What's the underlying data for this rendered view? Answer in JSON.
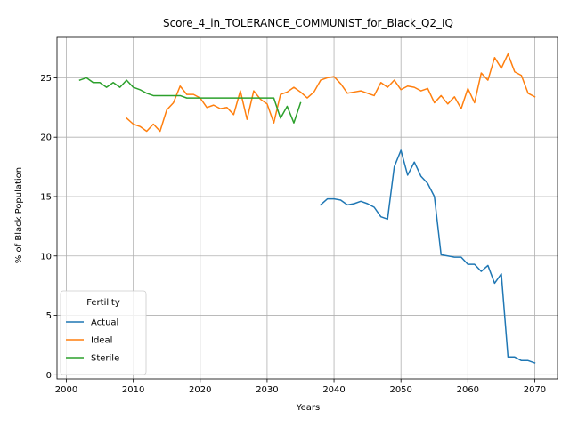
{
  "chart_data": {
    "type": "line",
    "title": "Score_4_in_TOLERANCE_COMMUNIST_for_Black_Q2_IQ",
    "xlabel": "Years",
    "ylabel": "% of Black Population",
    "xlim": [
      1998.6,
      2073.4
    ],
    "ylim": [
      -0.35,
      28.4
    ],
    "xticks": [
      2000,
      2010,
      2020,
      2030,
      2040,
      2050,
      2060,
      2070
    ],
    "yticks": [
      0,
      5,
      10,
      15,
      20,
      25
    ],
    "grid": true,
    "legend": {
      "title": "Fertility",
      "placement": "lower-left"
    },
    "series": [
      {
        "name": "Actual",
        "color": "#1f77b4",
        "x": [
          2038,
          2039,
          2040,
          2041,
          2042,
          2043,
          2044,
          2045,
          2046,
          2047,
          2048,
          2049,
          2050,
          2051,
          2052,
          2053,
          2054,
          2055,
          2056,
          2057,
          2058,
          2059,
          2060,
          2061,
          2062,
          2063,
          2064,
          2065,
          2066,
          2067,
          2068,
          2069,
          2070
        ],
        "y": [
          14.3,
          14.8,
          14.8,
          14.7,
          14.3,
          14.4,
          14.6,
          14.4,
          14.1,
          13.3,
          13.1,
          17.5,
          18.9,
          16.8,
          17.9,
          16.7,
          16.1,
          15.0,
          10.1,
          10.0,
          9.9,
          9.9,
          9.3,
          9.3,
          8.7,
          9.2,
          7.7,
          8.5,
          1.5,
          1.5,
          1.2,
          1.2,
          1.0
        ]
      },
      {
        "name": "Ideal",
        "color": "#ff7f0e",
        "x": [
          2009,
          2010,
          2011,
          2012,
          2013,
          2014,
          2015,
          2016,
          2017,
          2018,
          2019,
          2020,
          2021,
          2022,
          2023,
          2024,
          2025,
          2026,
          2027,
          2028,
          2029,
          2030,
          2031,
          2032,
          2033,
          2034,
          2035,
          2036,
          2037,
          2038,
          2039,
          2040,
          2041,
          2042,
          2043,
          2044,
          2045,
          2046,
          2047,
          2048,
          2049,
          2050,
          2051,
          2052,
          2053,
          2054,
          2055,
          2056,
          2057,
          2058,
          2059,
          2060,
          2061,
          2062,
          2063,
          2064,
          2065,
          2066,
          2067,
          2068,
          2069,
          2070
        ],
        "y": [
          21.6,
          21.1,
          20.9,
          20.5,
          21.1,
          20.5,
          22.3,
          22.9,
          24.3,
          23.6,
          23.6,
          23.3,
          22.5,
          22.7,
          22.4,
          22.5,
          21.9,
          23.9,
          21.5,
          23.9,
          23.2,
          22.8,
          21.2,
          23.6,
          23.8,
          24.2,
          23.8,
          23.3,
          23.8,
          24.8,
          25.0,
          25.1,
          24.5,
          23.7,
          23.8,
          23.9,
          23.7,
          23.5,
          24.6,
          24.2,
          24.8,
          24.0,
          24.3,
          24.2,
          23.9,
          24.1,
          22.9,
          23.5,
          22.8,
          23.4,
          22.4,
          24.1,
          22.9,
          25.4,
          24.8,
          26.7,
          25.8,
          27.0,
          25.5,
          25.2,
          23.7,
          23.4
        ]
      },
      {
        "name": "Sterile",
        "color": "#2ca02c",
        "x": [
          2002,
          2003,
          2004,
          2005,
          2006,
          2007,
          2008,
          2009,
          2010,
          2011,
          2012,
          2013,
          2014,
          2015,
          2016,
          2017,
          2018,
          2019,
          2020,
          2021,
          2022,
          2023,
          2024,
          2025,
          2026,
          2027,
          2028,
          2029,
          2030,
          2031,
          2032,
          2033,
          2034,
          2035
        ],
        "y": [
          24.8,
          25.0,
          24.6,
          24.6,
          24.2,
          24.6,
          24.2,
          24.8,
          24.2,
          24.0,
          23.7,
          23.5,
          23.5,
          23.5,
          23.5,
          23.5,
          23.3,
          23.3,
          23.3,
          23.3,
          23.3,
          23.3,
          23.3,
          23.3,
          23.3,
          23.3,
          23.3,
          23.3,
          23.3,
          23.3,
          21.6,
          22.6,
          21.2,
          22.9
        ]
      }
    ]
  }
}
